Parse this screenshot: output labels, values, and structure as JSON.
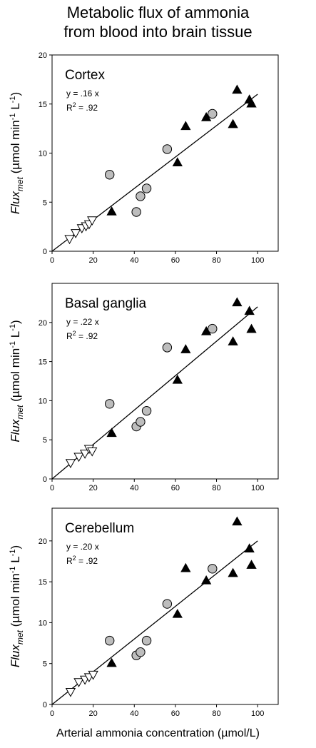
{
  "title_line1": "Metabolic flux of ammonia",
  "title_line2": "from blood into brain tissue",
  "xlabel": "Arterial ammonia concentration (µmol/L)",
  "ylabel": {
    "main": "Flux",
    "sub": "met",
    "units_a": " (µmol min",
    "sup1": "-1",
    "units_b": " L",
    "sup2": "-1",
    "units_c": ")"
  },
  "chart_data": [
    {
      "type": "scatter",
      "panel": "Cortex",
      "equation": "y = .16 x",
      "r2_label": "R",
      "r2_exp": "2",
      "r2_value": " = .92",
      "xlim": [
        0,
        110
      ],
      "ylim": [
        0,
        20
      ],
      "xticks": [
        0,
        20,
        40,
        60,
        80,
        100
      ],
      "yticks": [
        0,
        5,
        10,
        15,
        20
      ],
      "fit_slope": 0.16,
      "fit_range": [
        0,
        100
      ],
      "series": [
        {
          "marker": "triangle-down-open",
          "points": [
            [
              8.5,
              1.3
            ],
            [
              11.5,
              1.9
            ],
            [
              14.5,
              2.4
            ],
            [
              16.5,
              2.6
            ],
            [
              18,
              2.8
            ],
            [
              19.5,
              3.2
            ]
          ]
        },
        {
          "marker": "circle-gray",
          "points": [
            [
              28,
              7.8
            ],
            [
              41,
              4.0
            ],
            [
              43,
              5.6
            ],
            [
              46,
              6.4
            ],
            [
              56,
              10.4
            ],
            [
              78,
              14.0
            ]
          ]
        },
        {
          "marker": "triangle-up-filled",
          "points": [
            [
              29,
              4.0
            ],
            [
              61,
              9.0
            ],
            [
              65,
              12.7
            ],
            [
              75,
              13.6
            ],
            [
              88,
              12.9
            ],
            [
              90,
              16.4
            ],
            [
              96,
              15.4
            ],
            [
              97,
              15.0
            ]
          ]
        }
      ]
    },
    {
      "type": "scatter",
      "panel": "Basal ganglia",
      "equation": "y = .22 x",
      "r2_label": "R",
      "r2_exp": "2",
      "r2_value": " = .92",
      "xlim": [
        0,
        110
      ],
      "ylim": [
        0,
        25
      ],
      "xticks": [
        0,
        20,
        40,
        60,
        80,
        100
      ],
      "yticks": [
        0,
        5,
        10,
        15,
        20
      ],
      "fit_slope": 0.22,
      "fit_range": [
        0,
        100
      ],
      "series": [
        {
          "marker": "triangle-down-open",
          "points": [
            [
              9,
              2.1
            ],
            [
              13,
              2.9
            ],
            [
              16,
              3.3
            ],
            [
              18,
              3.9
            ],
            [
              19.5,
              3.6
            ]
          ]
        },
        {
          "marker": "circle-gray",
          "points": [
            [
              28,
              9.6
            ],
            [
              41,
              6.7
            ],
            [
              43,
              7.3
            ],
            [
              46,
              8.7
            ],
            [
              56,
              16.8
            ],
            [
              78,
              19.2
            ]
          ]
        },
        {
          "marker": "triangle-up-filled",
          "points": [
            [
              29,
              5.8
            ],
            [
              61,
              12.6
            ],
            [
              65,
              16.5
            ],
            [
              75,
              18.8
            ],
            [
              88,
              17.5
            ],
            [
              90,
              22.5
            ],
            [
              96,
              21.4
            ],
            [
              97,
              19.1
            ]
          ]
        }
      ]
    },
    {
      "type": "scatter",
      "panel": "Cerebellum",
      "equation": "y = .20 x",
      "r2_label": "R",
      "r2_exp": "2",
      "r2_value": " = .92",
      "xlim": [
        0,
        110
      ],
      "ylim": [
        0,
        24
      ],
      "xticks": [
        0,
        20,
        40,
        60,
        80,
        100
      ],
      "yticks": [
        0,
        5,
        10,
        15,
        20
      ],
      "fit_slope": 0.2,
      "fit_range": [
        0,
        100
      ],
      "series": [
        {
          "marker": "triangle-down-open",
          "points": [
            [
              9,
              1.6
            ],
            [
              13,
              2.8
            ],
            [
              16,
              3.1
            ],
            [
              18,
              3.4
            ],
            [
              20,
              3.7
            ]
          ]
        },
        {
          "marker": "circle-gray",
          "points": [
            [
              28,
              7.8
            ],
            [
              41,
              6.0
            ],
            [
              43,
              6.4
            ],
            [
              46,
              7.8
            ],
            [
              56,
              12.3
            ],
            [
              78,
              16.6
            ]
          ]
        },
        {
          "marker": "triangle-up-filled",
          "points": [
            [
              29,
              5.0
            ],
            [
              61,
              11.0
            ],
            [
              65,
              16.6
            ],
            [
              75,
              15.1
            ],
            [
              88,
              16.0
            ],
            [
              90,
              22.3
            ],
            [
              96,
              19.0
            ],
            [
              97,
              17.0
            ]
          ]
        }
      ]
    }
  ]
}
